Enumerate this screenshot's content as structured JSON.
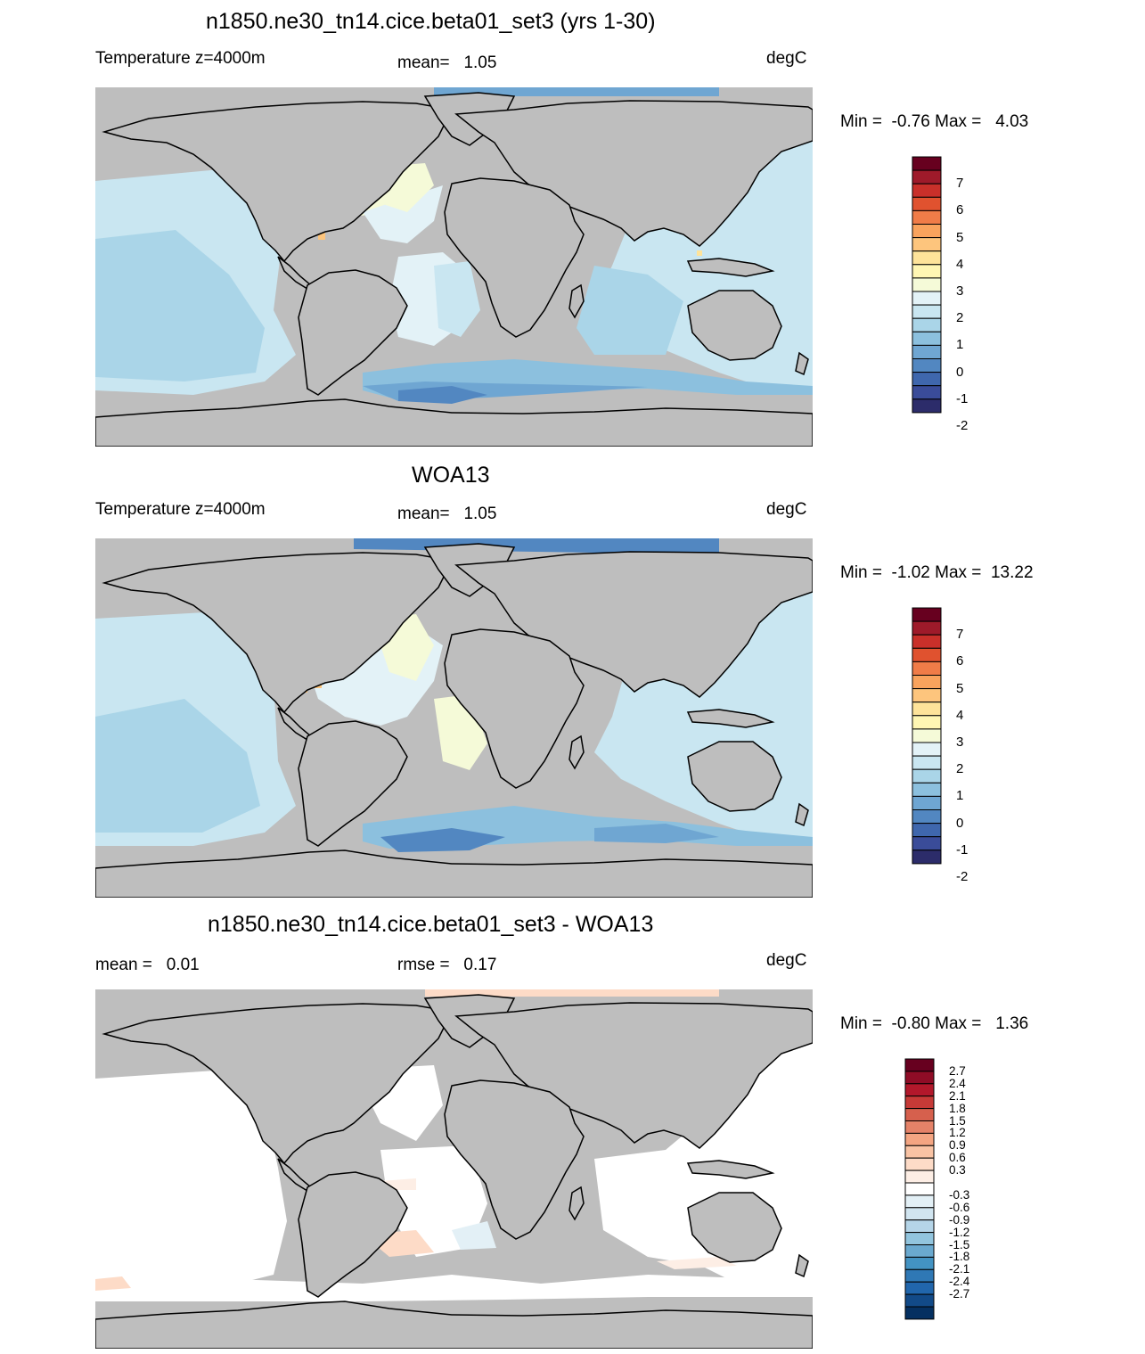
{
  "panels": [
    {
      "title": "n1850.ne30_tn14.cice.beta01_set3 (yrs 1-30)",
      "left_label": "Temperature z=4000m",
      "center_label": "mean=   1.05",
      "right_label": "degC",
      "minmax": "Min =  -0.76 Max =   4.03"
    },
    {
      "title": "WOA13",
      "left_label": "Temperature z=4000m",
      "center_label": "mean=   1.05",
      "right_label": "degC",
      "minmax": "Min =  -1.02 Max =  13.22"
    },
    {
      "title": "n1850.ne30_tn14.cice.beta01_set3 - WOA13",
      "left_label": "mean =   0.01",
      "center_label": "rmse =   0.17",
      "right_label": "degC",
      "minmax": "Min =  -0.80 Max =   1.36"
    }
  ],
  "colorbar_abs": {
    "labels": [
      "7",
      "6",
      "5",
      "4",
      "3",
      "2",
      "1",
      "0",
      "-1",
      "-2"
    ],
    "colors": [
      "#67001f",
      "#9e1a2a",
      "#c9302a",
      "#e0522f",
      "#f07c48",
      "#f9a35d",
      "#fdc57d",
      "#fee39a",
      "#fff6b3",
      "#f5fad8",
      "#e3f2f7",
      "#c9e6f1",
      "#aad5e8",
      "#8cc0de",
      "#6fa6d2",
      "#5287c1",
      "#3f67ad",
      "#3a4c99",
      "#2c2c6a"
    ]
  },
  "colorbar_diff": {
    "labels": [
      "2.7",
      "2.4",
      "2.1",
      "1.8",
      "1.5",
      "1.2",
      "0.9",
      "0.6",
      "0.3",
      "-0.3",
      "-0.6",
      "-0.9",
      "-1.2",
      "-1.5",
      "-1.8",
      "-2.1",
      "-2.4",
      "-2.7"
    ],
    "colors": [
      "#67001f",
      "#8f0c26",
      "#b2182b",
      "#c63a37",
      "#d6604d",
      "#e58268",
      "#f4a582",
      "#f9c3a4",
      "#fddbc7",
      "#fdeee5",
      "#ffffff",
      "#e3f0f6",
      "#d1e5f0",
      "#b5d5e8",
      "#92c5de",
      "#6aa9cf",
      "#4393c3",
      "#2f78b5",
      "#2166ac",
      "#124a88",
      "#053061"
    ]
  },
  "colors": {
    "land": "#bebebe",
    "coast": "#000000"
  }
}
